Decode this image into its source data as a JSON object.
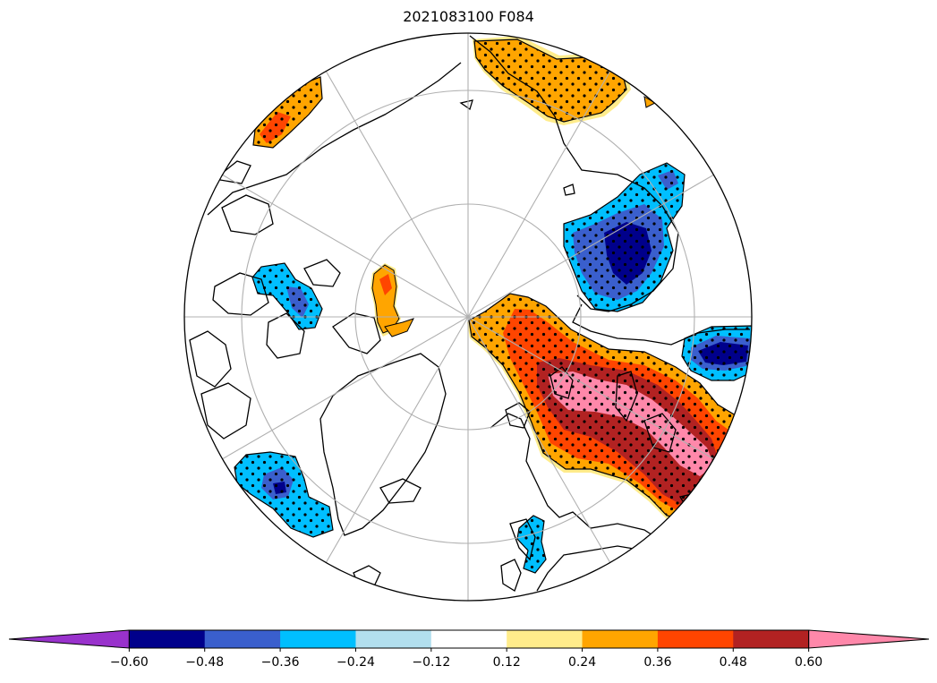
{
  "title": "2021083100 F084",
  "projection": "north-polar-stereographic",
  "colorbar": {
    "extend": "both",
    "under_color": "#9932cc",
    "over_color": "#ff88aa",
    "bins": [
      {
        "lo": -0.6,
        "hi": -0.48,
        "color": "#00008b"
      },
      {
        "lo": -0.48,
        "hi": -0.36,
        "color": "#3a5fcd"
      },
      {
        "lo": -0.36,
        "hi": -0.24,
        "color": "#00bfff"
      },
      {
        "lo": -0.24,
        "hi": -0.12,
        "color": "#b2dfee"
      },
      {
        "lo": -0.12,
        "hi": 0.12,
        "color": "#ffffff"
      },
      {
        "lo": 0.12,
        "hi": 0.24,
        "color": "#ffec8b"
      },
      {
        "lo": 0.24,
        "hi": 0.36,
        "color": "#ffa500"
      },
      {
        "lo": 0.36,
        "hi": 0.48,
        "color": "#ff4500"
      },
      {
        "lo": 0.48,
        "hi": 0.6,
        "color": "#b22222"
      }
    ],
    "tick_labels": [
      "−0.60",
      "−0.48",
      "−0.36",
      "−0.24",
      "−0.12",
      "0.12",
      "0.24",
      "0.36",
      "0.48",
      "0.60"
    ]
  },
  "anomaly_regions": [
    {
      "name": "east-siberia-positive",
      "sign": "positive",
      "stippled": true
    },
    {
      "name": "kamchatka-positive",
      "sign": "positive",
      "stippled": true
    },
    {
      "name": "northwest-eurasia-negative",
      "sign": "negative",
      "stippled": true
    },
    {
      "name": "ural-west-siberia-positive",
      "sign": "positive",
      "stippled": true
    },
    {
      "name": "caspian-negative",
      "sign": "negative",
      "stippled": true
    },
    {
      "name": "hudson-bay-negative",
      "sign": "negative",
      "stippled": true
    },
    {
      "name": "alaska-negative",
      "sign": "negative",
      "stippled": true
    },
    {
      "name": "siberian-arctic-positive",
      "sign": "positive",
      "stippled": false
    },
    {
      "name": "atlantic-negative",
      "sign": "negative",
      "stippled": true
    }
  ]
}
